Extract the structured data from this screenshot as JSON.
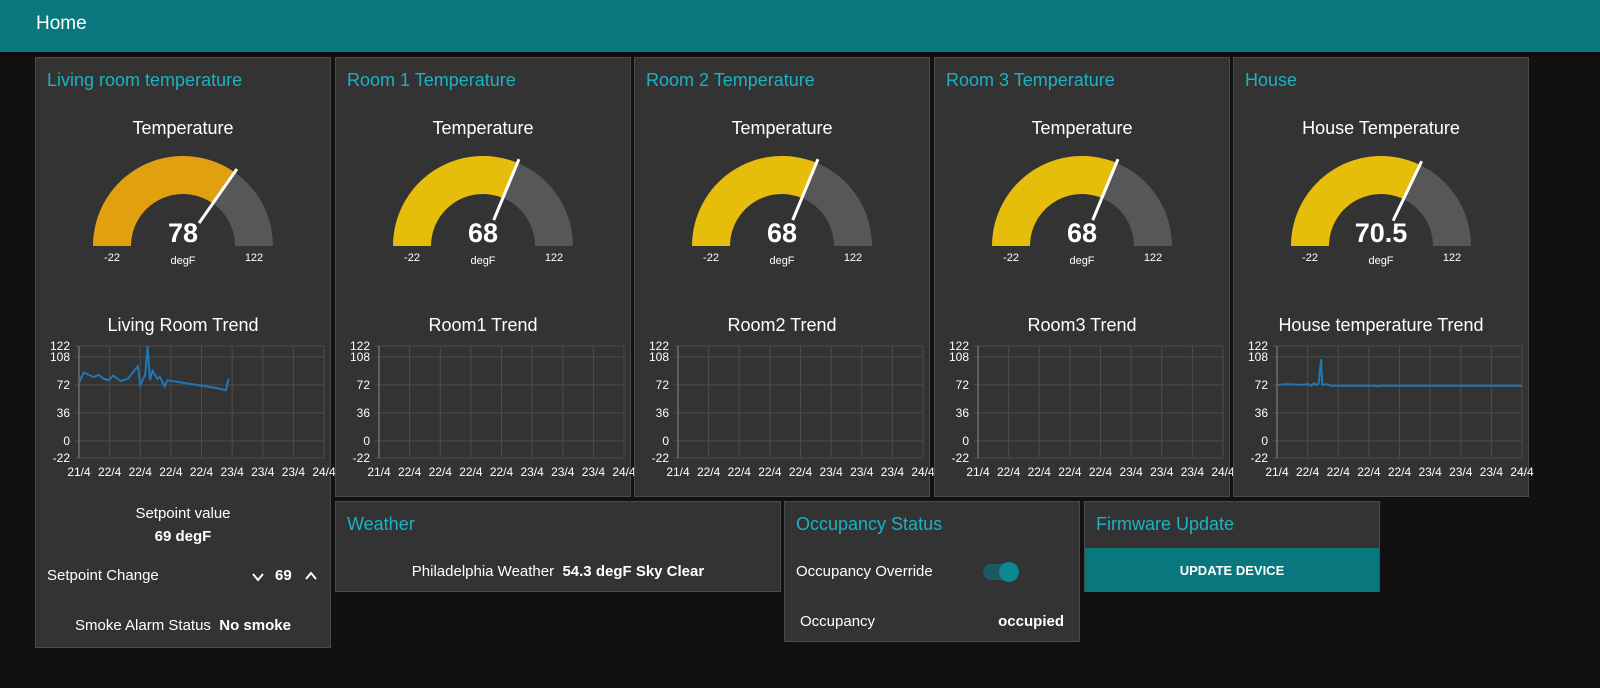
{
  "header": {
    "title": "Home"
  },
  "colors": {
    "accent": "#08777e",
    "title": "#19b4c4",
    "gauge_track": "#575757",
    "line": "#1f77b4"
  },
  "panels": [
    {
      "title": "Living room temperature",
      "gauge": {
        "label": "Temperature",
        "value": 78,
        "display": "78",
        "min": -22,
        "max": 122,
        "min_label": "-22",
        "max_label": "122",
        "units": "degF",
        "color": "#e0a010"
      },
      "trend_title": "Living Room Trend"
    },
    {
      "title": "Room 1 Temperature",
      "gauge": {
        "label": "Temperature",
        "value": 68,
        "display": "68",
        "min": -22,
        "max": 122,
        "min_label": "-22",
        "max_label": "122",
        "units": "degF",
        "color": "#e6bd0a"
      },
      "trend_title": "Room1 Trend"
    },
    {
      "title": "Room 2 Temperature",
      "gauge": {
        "label": "Temperature",
        "value": 68,
        "display": "68",
        "min": -22,
        "max": 122,
        "min_label": "-22",
        "max_label": "122",
        "units": "degF",
        "color": "#e6bd0a"
      },
      "trend_title": "Room2 Trend"
    },
    {
      "title": "Room 3 Temperature",
      "gauge": {
        "label": "Temperature",
        "value": 68,
        "display": "68",
        "min": -22,
        "max": 122,
        "min_label": "-22",
        "max_label": "122",
        "units": "degF",
        "color": "#e6bd0a"
      },
      "trend_title": "Room3 Trend"
    },
    {
      "title": "House",
      "gauge": {
        "label": "House Temperature",
        "value": 70.5,
        "display": "70.5",
        "min": -22,
        "max": 122,
        "min_label": "-22",
        "max_label": "122",
        "units": "degF",
        "color": "#e6bd0a"
      },
      "trend_title": "House temperature Trend"
    }
  ],
  "chart_data": [
    {
      "type": "line",
      "title": "Living Room Trend",
      "y_ticks": [
        122,
        108,
        72,
        36,
        0,
        -22
      ],
      "x_ticks": [
        "21/4",
        "22/4",
        "22/4",
        "22/4",
        "22/4",
        "23/4",
        "23/4",
        "23/4",
        "24/4"
      ],
      "ylim": [
        -22,
        122
      ],
      "grid": true,
      "series": [
        {
          "points": [
            [
              0.0,
              75
            ],
            [
              0.02,
              88
            ],
            [
              0.06,
              82
            ],
            [
              0.08,
              85
            ],
            [
              0.1,
              80
            ],
            [
              0.12,
              78
            ],
            [
              0.14,
              84
            ],
            [
              0.17,
              77
            ],
            [
              0.2,
              80
            ],
            [
              0.24,
              96
            ],
            [
              0.25,
              72
            ],
            [
              0.27,
              85
            ],
            [
              0.28,
              122
            ],
            [
              0.29,
              78
            ],
            [
              0.3,
              90
            ],
            [
              0.32,
              80
            ],
            [
              0.33,
              82
            ],
            [
              0.35,
              70
            ],
            [
              0.36,
              78
            ],
            [
              0.4,
              76
            ],
            [
              0.48,
              72
            ],
            [
              0.56,
              68
            ],
            [
              0.6,
              65
            ],
            [
              0.61,
              80
            ]
          ]
        }
      ]
    },
    {
      "type": "line",
      "title": "Room1 Trend",
      "y_ticks": [
        122,
        108,
        72,
        36,
        0,
        -22
      ],
      "x_ticks": [
        "21/4",
        "22/4",
        "22/4",
        "22/4",
        "22/4",
        "23/4",
        "23/4",
        "23/4",
        "24/4"
      ],
      "ylim": [
        -22,
        122
      ],
      "grid": true,
      "series": []
    },
    {
      "type": "line",
      "title": "Room2 Trend",
      "y_ticks": [
        122,
        108,
        72,
        36,
        0,
        -22
      ],
      "x_ticks": [
        "21/4",
        "22/4",
        "22/4",
        "22/4",
        "22/4",
        "23/4",
        "23/4",
        "23/4",
        "24/4"
      ],
      "ylim": [
        -22,
        122
      ],
      "grid": true,
      "series": []
    },
    {
      "type": "line",
      "title": "Room3 Trend",
      "y_ticks": [
        122,
        108,
        72,
        36,
        0,
        -22
      ],
      "x_ticks": [
        "21/4",
        "22/4",
        "22/4",
        "22/4",
        "22/4",
        "23/4",
        "23/4",
        "23/4",
        "24/4"
      ],
      "ylim": [
        -22,
        122
      ],
      "grid": true,
      "series": []
    },
    {
      "type": "line",
      "title": "House temperature Trend",
      "y_ticks": [
        122,
        108,
        72,
        36,
        0,
        -22
      ],
      "x_ticks": [
        "21/4",
        "22/4",
        "22/4",
        "22/4",
        "22/4",
        "23/4",
        "23/4",
        "23/4",
        "24/4"
      ],
      "ylim": [
        -22,
        122
      ],
      "grid": true,
      "series": [
        {
          "points": [
            [
              0.0,
              72
            ],
            [
              0.04,
              73
            ],
            [
              0.1,
              72
            ],
            [
              0.13,
              73
            ],
            [
              0.14,
              71
            ],
            [
              0.15,
              74
            ],
            [
              0.16,
              72
            ],
            [
              0.17,
              74
            ],
            [
              0.18,
              105
            ],
            [
              0.185,
              72
            ],
            [
              0.2,
              73
            ],
            [
              0.22,
              71
            ],
            [
              0.3,
              71
            ],
            [
              0.4,
              71
            ],
            [
              0.41,
              70
            ],
            [
              0.42,
              71
            ],
            [
              0.5,
              71
            ],
            [
              0.6,
              71
            ],
            [
              0.7,
              71
            ],
            [
              0.8,
              71
            ],
            [
              0.9,
              71
            ],
            [
              1.0,
              71
            ]
          ]
        }
      ]
    }
  ],
  "setpoint": {
    "label": "Setpoint value",
    "value": "69 degF",
    "change_label": "Setpoint Change",
    "change_value": "69"
  },
  "smoke": {
    "label": "Smoke Alarm Status",
    "value": "No smoke"
  },
  "weather": {
    "title": "Weather",
    "label": "Philadelphia Weather",
    "value": "54.3 degF Sky Clear"
  },
  "occupancy": {
    "title": "Occupancy Status",
    "override_label": "Occupancy Override",
    "override_on": true,
    "label": "Occupancy",
    "value": "occupied"
  },
  "firmware": {
    "title": "Firmware Update",
    "button_label": "UPDATE DEVICE"
  }
}
